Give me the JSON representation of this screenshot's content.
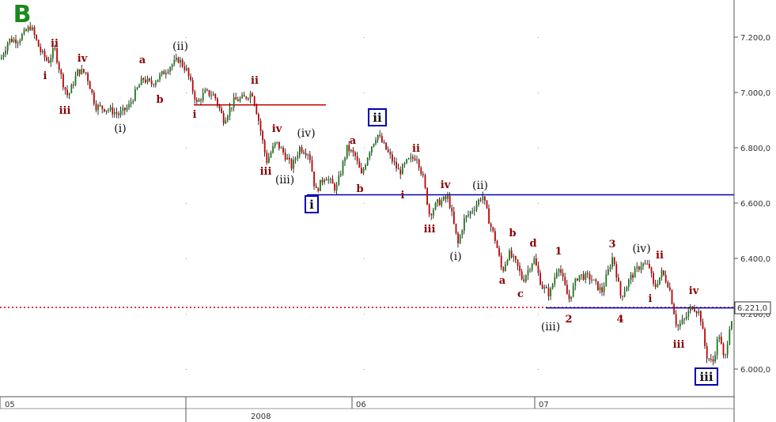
{
  "chart_data": {
    "type": "candlestick",
    "y_ticks": [
      "6.000,0",
      "6.200,0",
      "6.400,0",
      "6.600,0",
      "6.800,0",
      "7.000,0",
      "7.200,0"
    ],
    "y_tick_values": [
      6000,
      6200,
      6400,
      6600,
      6800,
      7000,
      7200
    ],
    "ylim": [
      5925,
      7330
    ],
    "x_ticks": [
      "05",
      "06",
      "07"
    ],
    "x_year_label": "2008",
    "current_value": 6221,
    "current_value_label": "6.221,0",
    "colors": {
      "up": "#1a7a1a",
      "down": "#c00000",
      "wick": "#000000",
      "hline_blue": "#0000b0",
      "hline_red": "#c00000",
      "price_dotted": "#cc0000"
    },
    "wave_path": [
      [
        0,
        7120
      ],
      [
        10,
        7190
      ],
      [
        22,
        7190
      ],
      [
        38,
        7240
      ],
      [
        50,
        7150
      ],
      [
        60,
        7110
      ],
      [
        68,
        7160
      ],
      [
        78,
        7040
      ],
      [
        85,
        6985
      ],
      [
        98,
        7080
      ],
      [
        108,
        7070
      ],
      [
        120,
        6950
      ],
      [
        135,
        6940
      ],
      [
        150,
        6920
      ],
      [
        162,
        6950
      ],
      [
        172,
        7010
      ],
      [
        180,
        7050
      ],
      [
        190,
        7030
      ],
      [
        202,
        7060
      ],
      [
        212,
        7090
      ],
      [
        225,
        7120
      ],
      [
        235,
        7080
      ],
      [
        248,
        6960
      ],
      [
        258,
        7000
      ],
      [
        270,
        6990
      ],
      [
        282,
        6900
      ],
      [
        295,
        6970
      ],
      [
        308,
        6980
      ],
      [
        318,
        7000
      ],
      [
        326,
        6900
      ],
      [
        336,
        6750
      ],
      [
        348,
        6820
      ],
      [
        358,
        6780
      ],
      [
        368,
        6730
      ],
      [
        378,
        6800
      ],
      [
        390,
        6780
      ],
      [
        398,
        6640
      ],
      [
        410,
        6700
      ],
      [
        424,
        6650
      ],
      [
        438,
        6800
      ],
      [
        448,
        6770
      ],
      [
        456,
        6700
      ],
      [
        466,
        6790
      ],
      [
        476,
        6850
      ],
      [
        490,
        6780
      ],
      [
        504,
        6710
      ],
      [
        514,
        6750
      ],
      [
        526,
        6770
      ],
      [
        534,
        6690
      ],
      [
        542,
        6560
      ],
      [
        552,
        6600
      ],
      [
        566,
        6620
      ],
      [
        578,
        6450
      ],
      [
        586,
        6540
      ],
      [
        600,
        6590
      ],
      [
        609,
        6630
      ],
      [
        618,
        6530
      ],
      [
        626,
        6460
      ],
      [
        634,
        6350
      ],
      [
        642,
        6420
      ],
      [
        652,
        6380
      ],
      [
        660,
        6320
      ],
      [
        674,
        6400
      ],
      [
        684,
        6300
      ],
      [
        694,
        6270
      ],
      [
        705,
        6380
      ],
      [
        718,
        6250
      ],
      [
        730,
        6340
      ],
      [
        745,
        6330
      ],
      [
        760,
        6280
      ],
      [
        774,
        6410
      ],
      [
        784,
        6260
      ],
      [
        796,
        6330
      ],
      [
        810,
        6380
      ],
      [
        820,
        6370
      ],
      [
        826,
        6290
      ],
      [
        836,
        6350
      ],
      [
        845,
        6300
      ],
      [
        855,
        6150
      ],
      [
        865,
        6180
      ],
      [
        874,
        6230
      ],
      [
        884,
        6200
      ],
      [
        892,
        6050
      ],
      [
        900,
        6020
      ],
      [
        908,
        6130
      ],
      [
        915,
        6020
      ],
      [
        922,
        6170
      ],
      [
        928,
        6200
      ]
    ],
    "levels": [
      {
        "name": "level-6630",
        "value": 6630,
        "x1": 388,
        "x2": 928,
        "color": "#0000b0"
      },
      {
        "name": "level-6221",
        "value": 6221,
        "x1": 690,
        "x2": 928,
        "color": "#0000b0"
      },
      {
        "name": "level-6955",
        "value": 6955,
        "x1": 245,
        "x2": 412,
        "color": "#c00000"
      }
    ],
    "annotations": [
      {
        "text": "B",
        "style": "big",
        "x": 28,
        "y": 28
      },
      {
        "text": "ii",
        "style": "red",
        "x": 69,
        "y": 59
      },
      {
        "text": "i",
        "style": "red",
        "x": 57,
        "y": 100
      },
      {
        "text": "iv",
        "style": "red",
        "x": 104,
        "y": 78
      },
      {
        "text": "iii",
        "style": "red",
        "x": 82,
        "y": 144
      },
      {
        "text": "a",
        "style": "red",
        "x": 180,
        "y": 80
      },
      {
        "text": "b",
        "style": "red",
        "x": 202,
        "y": 130
      },
      {
        "text": "(ii)",
        "style": "black",
        "x": 228,
        "y": 63
      },
      {
        "text": "(i)",
        "style": "black",
        "x": 152,
        "y": 167
      },
      {
        "text": "ii",
        "style": "red",
        "x": 322,
        "y": 106
      },
      {
        "text": "i",
        "style": "red",
        "x": 246,
        "y": 149
      },
      {
        "text": "iv",
        "style": "red",
        "x": 350,
        "y": 167
      },
      {
        "text": "(iv)",
        "style": "black",
        "x": 387,
        "y": 173
      },
      {
        "text": "iii",
        "style": "red",
        "x": 336,
        "y": 221
      },
      {
        "text": "(iii)",
        "style": "black",
        "x": 360,
        "y": 232
      },
      {
        "text": "a",
        "style": "red",
        "x": 446,
        "y": 182
      },
      {
        "text": "b",
        "style": "red",
        "x": 455,
        "y": 243
      },
      {
        "text": "ii",
        "style": "red",
        "x": 526,
        "y": 192
      },
      {
        "text": "i",
        "style": "red",
        "x": 509,
        "y": 251
      },
      {
        "text": "iv",
        "style": "red",
        "x": 563,
        "y": 238
      },
      {
        "text": "(ii)",
        "style": "black",
        "x": 607,
        "y": 239
      },
      {
        "text": "iii",
        "style": "red",
        "x": 543,
        "y": 294
      },
      {
        "text": "(i)",
        "style": "black",
        "x": 576,
        "y": 329
      },
      {
        "text": "b",
        "style": "red",
        "x": 648,
        "y": 299
      },
      {
        "text": "d",
        "style": "red",
        "x": 674,
        "y": 312
      },
      {
        "text": "a",
        "style": "red",
        "x": 635,
        "y": 359
      },
      {
        "text": "c",
        "style": "red",
        "x": 658,
        "y": 376
      },
      {
        "text": "1",
        "style": "red",
        "x": 706,
        "y": 322
      },
      {
        "text": "3",
        "style": "red",
        "x": 774,
        "y": 313
      },
      {
        "text": "(iv)",
        "style": "black",
        "x": 811,
        "y": 319
      },
      {
        "text": "ii",
        "style": "red",
        "x": 834,
        "y": 327
      },
      {
        "text": "i",
        "style": "red",
        "x": 822,
        "y": 382
      },
      {
        "text": "iv",
        "style": "red",
        "x": 877,
        "y": 372
      },
      {
        "text": "2",
        "style": "red",
        "x": 719,
        "y": 408
      },
      {
        "text": "4",
        "style": "red",
        "x": 784,
        "y": 408
      },
      {
        "text": "(iii)",
        "style": "black",
        "x": 696,
        "y": 418
      },
      {
        "text": "iii",
        "style": "red",
        "x": 858,
        "y": 440
      }
    ],
    "boxed_labels": [
      {
        "text": "ii",
        "x": 477,
        "y": 153
      },
      {
        "text": "i",
        "x": 394,
        "y": 263
      },
      {
        "text": "iii",
        "x": 893,
        "y": 481
      }
    ]
  }
}
